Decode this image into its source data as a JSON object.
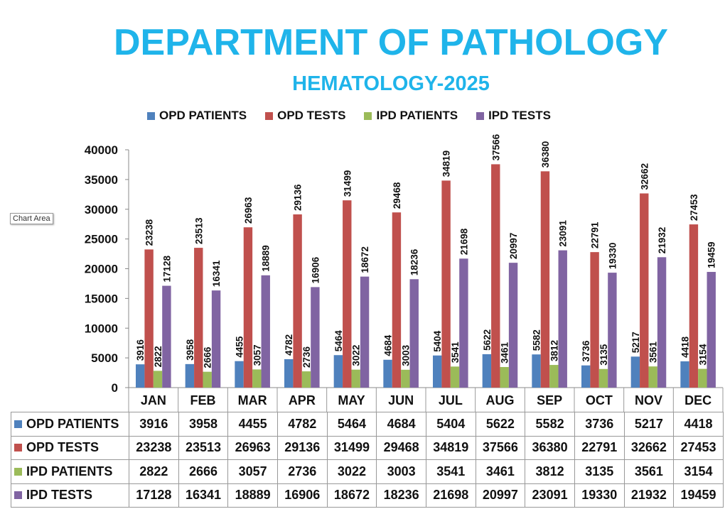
{
  "chart_data": {
    "type": "bar",
    "title": "DEPARTMENT OF PATHOLOGY",
    "subtitle": "HEMATOLOGY-2025",
    "categories": [
      "JAN",
      "FEB",
      "MAR",
      "APR",
      "MAY",
      "JUN",
      "JUL",
      "AUG",
      "SEP",
      "OCT",
      "NOV",
      "DEC"
    ],
    "series": [
      {
        "name": "OPD PATIENTS",
        "color": "#4f81bd",
        "values": [
          3916,
          3958,
          4455,
          4782,
          5464,
          4684,
          5404,
          5622,
          5582,
          3736,
          5217,
          4418
        ]
      },
      {
        "name": "OPD TESTS",
        "color": "#c0504d",
        "values": [
          23238,
          23513,
          26963,
          29136,
          31499,
          29468,
          34819,
          37566,
          36380,
          22791,
          32662,
          27453
        ]
      },
      {
        "name": "IPD PATIENTS",
        "color": "#9bbb59",
        "values": [
          2822,
          2666,
          3057,
          2736,
          3022,
          3003,
          3541,
          3461,
          3812,
          3135,
          3561,
          3154
        ]
      },
      {
        "name": "IPD TESTS",
        "color": "#8064a2",
        "values": [
          17128,
          16341,
          18889,
          16906,
          18672,
          18236,
          21698,
          20997,
          23091,
          19330,
          21932,
          19459
        ]
      }
    ],
    "ylim": [
      0,
      40000
    ],
    "yticks": [
      0,
      5000,
      10000,
      15000,
      20000,
      25000,
      30000,
      35000,
      40000
    ],
    "legend": "top",
    "grid": false,
    "data_table": true
  },
  "tooltip": "Chart Area"
}
